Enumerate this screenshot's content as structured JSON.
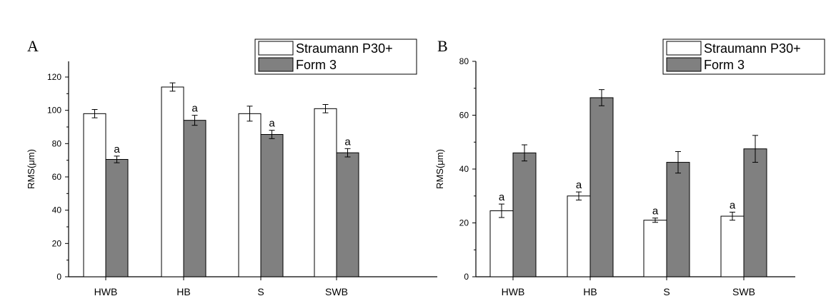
{
  "chart_data": [
    {
      "panel_label": "A",
      "type": "bar",
      "categories": [
        "HWB",
        "HB",
        "S",
        "SWB"
      ],
      "ylabel": "RMS(μm)",
      "xlabel": "",
      "ylim": [
        0,
        130
      ],
      "yticks": [
        0,
        20,
        40,
        60,
        80,
        100,
        120
      ],
      "legend_position": "top-right",
      "series": [
        {
          "name": "Straumann P30+",
          "color": "#ffffff",
          "values": [
            98,
            114,
            98,
            101
          ],
          "errors": [
            2.5,
            2.5,
            4.5,
            2.5
          ],
          "annotations": [
            "",
            "",
            "",
            ""
          ]
        },
        {
          "name": "Form 3",
          "color": "#808080",
          "values": [
            70.5,
            94,
            85.5,
            74.5
          ],
          "errors": [
            2,
            3,
            2.5,
            2.5
          ],
          "annotations": [
            "a",
            "a",
            "a",
            "a"
          ]
        }
      ]
    },
    {
      "panel_label": "B",
      "type": "bar",
      "categories": [
        "HWB",
        "HB",
        "S",
        "SWB"
      ],
      "ylabel": "RMS(μm)",
      "xlabel": "",
      "ylim": [
        0,
        80
      ],
      "yticks": [
        0,
        20,
        40,
        60,
        80
      ],
      "legend_position": "top-right",
      "series": [
        {
          "name": "Straumann P30+",
          "color": "#ffffff",
          "values": [
            24.5,
            30,
            21,
            22.5
          ],
          "errors": [
            2.5,
            1.5,
            0.8,
            1.5
          ],
          "annotations": [
            "a",
            "a",
            "a",
            "a"
          ]
        },
        {
          "name": "Form 3",
          "color": "#808080",
          "values": [
            46,
            66.5,
            42.5,
            47.5
          ],
          "errors": [
            3,
            3,
            4,
            5
          ],
          "annotations": [
            "",
            "",
            "",
            ""
          ]
        }
      ]
    }
  ]
}
